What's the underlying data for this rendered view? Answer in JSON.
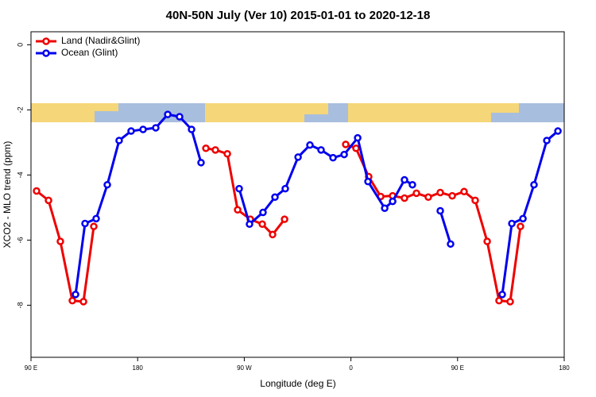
{
  "chart_data": {
    "type": "line",
    "title": "40N-50N July (Ver 10)   2015-01-01 to 2020-12-18",
    "xlabel": "Longitude (deg E)",
    "ylabel": "XCO2 - MLO trend (ppm)",
    "xlim": [
      90,
      540
    ],
    "xticks": [
      {
        "value": 90,
        "label": "90 E"
      },
      180,
      {
        "value": 270,
        "label": "90 W"
      },
      {
        "value": 360,
        "label": "0"
      },
      {
        "value": 450,
        "label": "90 E"
      },
      {
        "value": 540,
        "label": "180"
      }
    ],
    "ylim": [
      -9.6,
      0.4
    ],
    "yticks": [
      0,
      -2,
      -4,
      -6,
      -8
    ],
    "legend": "top-left",
    "series": [
      {
        "name": "Land (Nadir&Glint)",
        "color": "#ee0000",
        "x": [
          94.7,
          104.8,
          114.8,
          124.9,
          134.3,
          143,
          null,
          237.6,
          245.6,
          255.7,
          264.4,
          275.1,
          285.2,
          293.9,
          304,
          null,
          355.6,
          364.3,
          375,
          385.1,
          395.2,
          405.2,
          415.3,
          425.3,
          435.4,
          445.5,
          455.5,
          464.9,
          475,
          485,
          494.4,
          503.1
        ],
        "values": [
          -4.49,
          -4.78,
          -6.04,
          -7.86,
          -7.89,
          -5.58,
          null,
          -3.18,
          -3.23,
          -3.35,
          -5.07,
          -5.36,
          -5.51,
          -5.83,
          -5.36,
          null,
          -3.06,
          -3.18,
          -4.05,
          -4.66,
          -4.64,
          -4.71,
          -4.56,
          -4.68,
          -4.54,
          -4.64,
          -4.51,
          -4.78,
          -6.04,
          -7.86,
          -7.89,
          -5.58
        ]
      },
      {
        "name": "Ocean (Glint)",
        "color": "#0000ee",
        "x": [
          127.6,
          135.6,
          145,
          154.4,
          164.4,
          174.5,
          184.6,
          195.3,
          205.4,
          215.4,
          225.5,
          233.5,
          null,
          265.7,
          274.4,
          285.8,
          295.9,
          304.6,
          315.4,
          325.4,
          334.8,
          344.9,
          354.3,
          365.7,
          374.4,
          388.5,
          395.2,
          405.2,
          411.9,
          null,
          435.4,
          444.1,
          null,
          487.7,
          495.8,
          505.2,
          514.5,
          525.3,
          534.7
        ],
        "values": [
          -7.67,
          -5.49,
          -5.34,
          -4.3,
          -2.94,
          -2.65,
          -2.6,
          -2.55,
          -2.14,
          -2.21,
          -2.6,
          -3.62,
          null,
          -4.42,
          -5.51,
          -5.15,
          -4.68,
          -4.42,
          -3.45,
          -3.08,
          -3.23,
          -3.47,
          -3.37,
          -2.86,
          -4.2,
          -5.02,
          -4.81,
          -4.15,
          -4.3,
          null,
          -5.1,
          -6.12,
          null,
          -7.67,
          -5.49,
          -5.34,
          -4.3,
          -2.94,
          -2.65
        ]
      }
    ]
  }
}
